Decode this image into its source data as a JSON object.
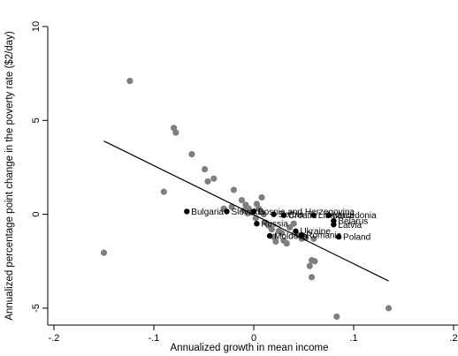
{
  "chart_data": {
    "type": "scatter",
    "title": "",
    "xlabel": "Annualized growth in mean income",
    "ylabel": "Annualized percentage point change in the poverty rate ($2/day)",
    "xlim": [
      -0.2,
      0.2
    ],
    "ylim": [
      -5.9,
      10.0
    ],
    "x_ticks": [
      -0.2,
      -0.1,
      0,
      0.1,
      0.2
    ],
    "x_tick_labels": [
      "-.2",
      "-.1",
      "0",
      ".1",
      ".2"
    ],
    "y_ticks": [
      -5,
      0,
      5,
      10
    ],
    "y_tick_labels": [
      "-5",
      "0",
      "5",
      "10"
    ],
    "grid": false,
    "legend": "none",
    "colors": {
      "gray_points": "#7f7f7f",
      "highlight_points": "#000000",
      "fit_line": "#000000"
    },
    "fit_line": {
      "x": [
        -0.15,
        0.135
      ],
      "y": [
        3.9,
        -3.55
      ]
    },
    "series": [
      {
        "points": [
          {
            "x": -0.15,
            "y": -2.05
          },
          {
            "x": -0.124,
            "y": 7.1
          },
          {
            "x": -0.08,
            "y": 4.6
          },
          {
            "x": -0.078,
            "y": 4.35
          },
          {
            "x": -0.062,
            "y": 3.2
          },
          {
            "x": -0.049,
            "y": 2.4
          },
          {
            "x": -0.046,
            "y": 1.75
          },
          {
            "x": -0.04,
            "y": 1.9
          },
          {
            "x": -0.09,
            "y": 1.2
          },
          {
            "x": -0.02,
            "y": 1.3
          },
          {
            "x": -0.03,
            "y": 0.3
          },
          {
            "x": -0.022,
            "y": 0.4
          },
          {
            "x": -0.012,
            "y": 0.75
          },
          {
            "x": -0.01,
            "y": 0.2
          },
          {
            "x": -0.008,
            "y": 0.5
          },
          {
            "x": -0.005,
            "y": 0.3
          },
          {
            "x": -0.002,
            "y": 0.1
          },
          {
            "x": 0.002,
            "y": -0.2
          },
          {
            "x": 0.005,
            "y": 0.3
          },
          {
            "x": 0.008,
            "y": 0.9
          },
          {
            "x": 0.01,
            "y": 0.0
          },
          {
            "x": 0.012,
            "y": -0.45
          },
          {
            "x": 0.015,
            "y": -0.6
          },
          {
            "x": 0.018,
            "y": -0.8
          },
          {
            "x": 0.02,
            "y": -1.2
          },
          {
            "x": 0.022,
            "y": -1.45
          },
          {
            "x": 0.025,
            "y": -0.9
          },
          {
            "x": 0.028,
            "y": -1.0
          },
          {
            "x": 0.03,
            "y": -1.4
          },
          {
            "x": 0.033,
            "y": -1.55
          },
          {
            "x": 0.036,
            "y": -0.7
          },
          {
            "x": 0.04,
            "y": -0.5
          },
          {
            "x": 0.044,
            "y": -1.1
          },
          {
            "x": 0.048,
            "y": -1.3
          },
          {
            "x": 0.052,
            "y": -1.25
          },
          {
            "x": 0.056,
            "y": -2.75
          },
          {
            "x": 0.058,
            "y": -3.35
          },
          {
            "x": 0.058,
            "y": -2.45
          },
          {
            "x": 0.061,
            "y": -2.5
          },
          {
            "x": 0.06,
            "y": -1.3
          },
          {
            "x": 0.083,
            "y": -5.45
          },
          {
            "x": 0.135,
            "y": -5.0
          },
          {
            "x": -0.006,
            "y": 0.05
          },
          {
            "x": 0.003,
            "y": 0.55
          }
        ]
      },
      {
        "points": [
          {
            "x": -0.067,
            "y": 0.15,
            "label": "Bulgaria"
          },
          {
            "x": -0.027,
            "y": 0.15,
            "label": "Slovakia"
          },
          {
            "x": 0.0,
            "y": 0.15,
            "label": "Bosnia and Herzegovina"
          },
          {
            "x": 0.003,
            "y": -0.5,
            "label": "Russia"
          },
          {
            "x": 0.016,
            "y": -1.15,
            "label": "Moldova"
          },
          {
            "x": 0.02,
            "y": 0.0,
            "label": "Serbia"
          },
          {
            "x": 0.03,
            "y": -0.05,
            "label": "Croatia"
          },
          {
            "x": 0.042,
            "y": -0.9,
            "label": "Ukraine"
          },
          {
            "x": 0.048,
            "y": -1.1,
            "label": "Romania"
          },
          {
            "x": 0.06,
            "y": -0.05,
            "label": "Lithuania"
          },
          {
            "x": 0.075,
            "y": -0.05,
            "label": "Macedonia"
          },
          {
            "x": 0.08,
            "y": -0.35,
            "label": "Belarus"
          },
          {
            "x": 0.08,
            "y": -0.55,
            "label": "Latvia"
          },
          {
            "x": 0.085,
            "y": -1.2,
            "label": "Poland"
          }
        ]
      }
    ]
  }
}
